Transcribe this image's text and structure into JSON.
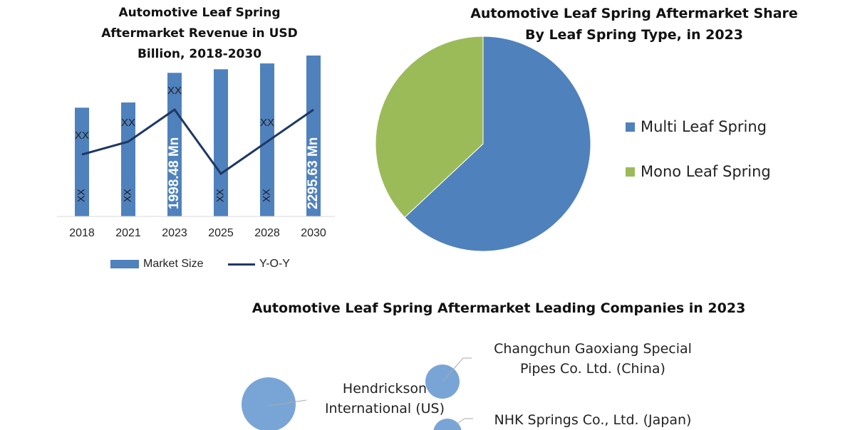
{
  "chart_data": [
    {
      "type": "bar",
      "title": "Automotive Leaf Spring Aftermarket Revenue in USD Billion, 2018-2030",
      "title_lines": [
        "Automotive Leaf Spring",
        "Aftermarket Revenue in USD",
        "Billion, 2018-2030"
      ],
      "categories": [
        "2018",
        "2021",
        "2023",
        "2025",
        "2028",
        "2030"
      ],
      "series": [
        {
          "name": "Market Size",
          "type": "bar",
          "color": "#4f81bd",
          "values": [
            1400,
            1490,
            1998.48,
            2060,
            2160,
            2295.63
          ],
          "data_labels": [
            "XX",
            "XX",
            "1998.48 Mn",
            "XX",
            "XX",
            "2295.63 Mn"
          ]
        },
        {
          "name": "Y-O-Y",
          "type": "line",
          "color": "#1f3864",
          "values": [
            0.3,
            0.5,
            1.0,
            0.0,
            0.5,
            1.0
          ],
          "data_labels": [
            "XX",
            "XX",
            "XX",
            "",
            "XX",
            ""
          ]
        }
      ],
      "legend_position": "bottom",
      "grid": false
    },
    {
      "type": "pie",
      "title": "Automotive Leaf Spring Aftermarket Share By Leaf Spring Type, in 2023",
      "title_lines": [
        "Automotive Leaf Spring Aftermarket Share",
        "By Leaf Spring Type, in 2023"
      ],
      "slices": [
        {
          "label": "Multi Leaf Spring",
          "value": 63,
          "color": "#4f81bd"
        },
        {
          "label": "Mono Leaf Spring",
          "value": 37,
          "color": "#9bbb59"
        }
      ],
      "legend_position": "right"
    },
    {
      "type": "bubble",
      "title": "Automotive Leaf Spring Aftermarket Leading Companies in 2023",
      "color": "#6a9bd1",
      "companies": [
        {
          "name_lines": [
            "Hendrickson",
            "International (US)"
          ],
          "size": 1.0
        },
        {
          "name_lines": [
            "Changchun Gaoxiang Special",
            "Pipes Co. Ltd. (China)"
          ],
          "size": 0.45
        },
        {
          "name_lines": [
            "NHK Springs Co., Ltd. (Japan)"
          ],
          "size": 0.4
        }
      ]
    }
  ]
}
